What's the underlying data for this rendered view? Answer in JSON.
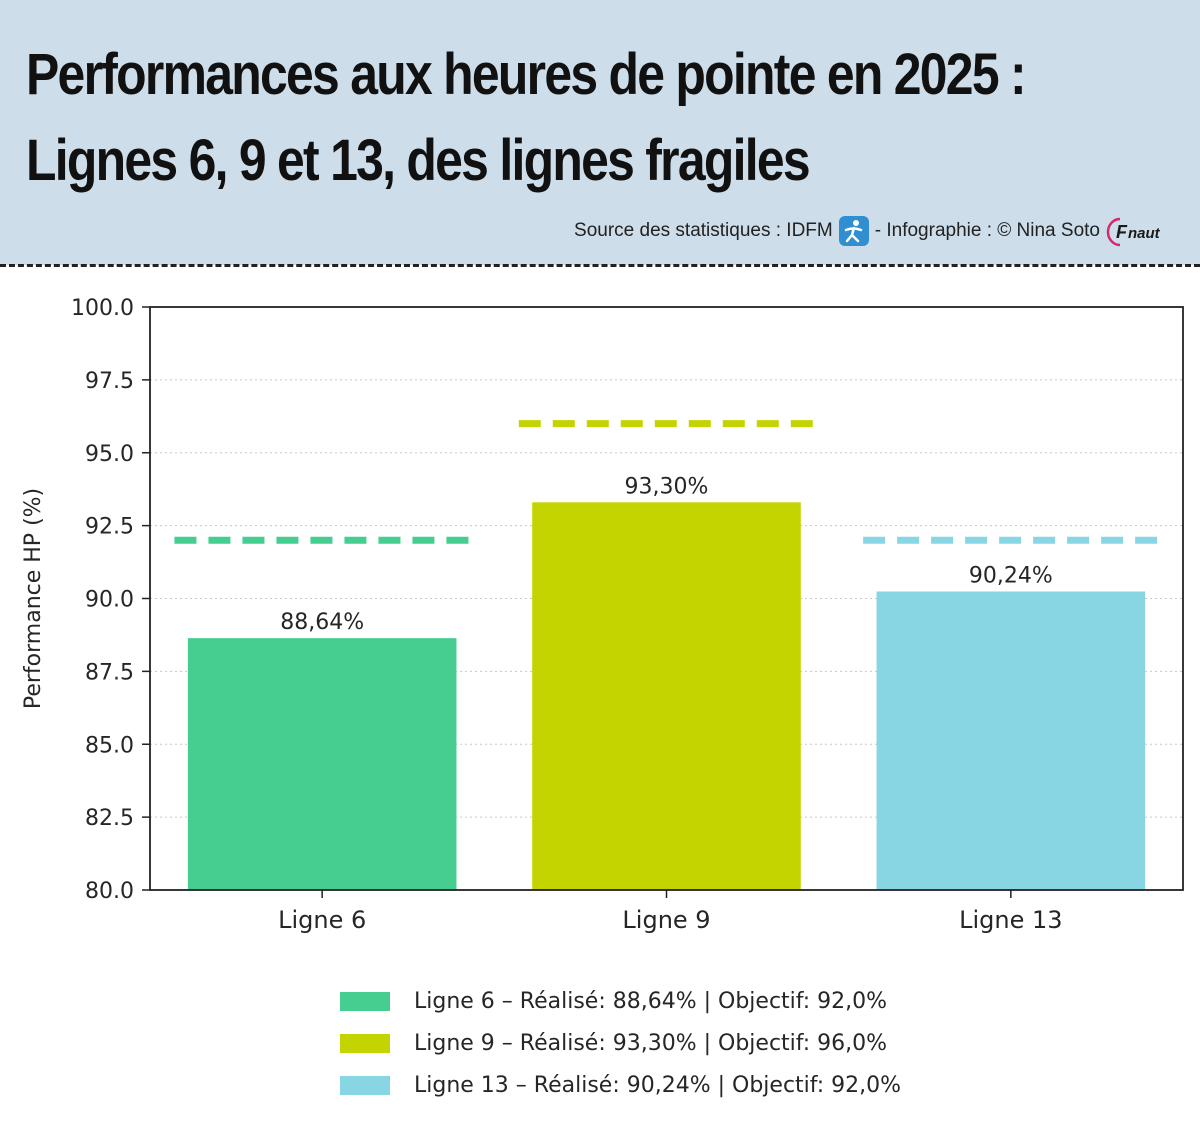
{
  "header": {
    "title_line1": "Performances aux heures de pointe en 2025 :",
    "title_line2": "Lignes 6, 9 et 13, des lignes fragiles",
    "source_prefix": "Source des statistiques : IDFM",
    "source_suffix": "- Infographie : © Nina Soto",
    "idfm_icon": "walking-person-icon",
    "fnaut_logo": "Fnaut"
  },
  "chart_data": {
    "type": "bar",
    "title": "",
    "xlabel": "",
    "ylabel": "Performance HP (%)",
    "ylim": [
      80,
      100
    ],
    "yticks": [
      "80.0",
      "82.5",
      "85.0",
      "87.5",
      "90.0",
      "92.5",
      "95.0",
      "97.5",
      "100.0"
    ],
    "categories": [
      "Ligne 6",
      "Ligne 9",
      "Ligne 13"
    ],
    "values": [
      88.64,
      93.3,
      90.24
    ],
    "value_labels": [
      "88,64%",
      "93,30%",
      "90,24%"
    ],
    "targets": [
      92.0,
      96.0,
      92.0
    ],
    "colors": [
      "#45ce90",
      "#c3d400",
      "#88d5e3"
    ],
    "grid": "horizontal dotted",
    "legend_position": "bottom",
    "legend": [
      "Ligne 6 – Réalisé: 88,64% | Objectif: 92,0%",
      "Ligne 9 – Réalisé: 93,30% | Objectif: 96,0%",
      "Ligne 13 – Réalisé: 90,24% | Objectif: 92,0%"
    ]
  }
}
